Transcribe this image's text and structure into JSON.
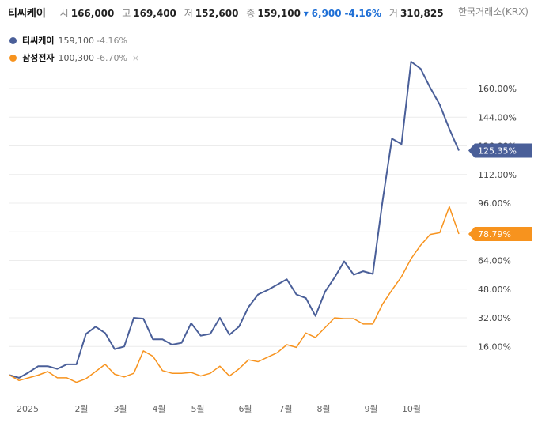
{
  "header": {
    "stock_name": "티씨케이",
    "open_label": "시",
    "open": "166,000",
    "high_label": "고",
    "high": "169,400",
    "low_label": "저",
    "low": "152,600",
    "close_label": "종",
    "close": "159,100",
    "change_arrow": "▾",
    "change": "6,900",
    "change_pct": "-4.16%",
    "volume_label": "거",
    "volume": "310,825",
    "source": "한국거래소(KRX)"
  },
  "legend": [
    {
      "name": "티씨케이",
      "value": "159,100",
      "pct": "-4.16%",
      "color": "#4a5f99"
    },
    {
      "name": "삼성전자",
      "value": "100,300",
      "pct": "-6.70%",
      "color": "#f7931e",
      "close_icon": "×"
    }
  ],
  "chart_data": {
    "type": "line",
    "x_ticks": [
      "2025",
      "2월",
      "3월",
      "4월",
      "5월",
      "6월",
      "7월",
      "8월",
      "9월",
      "10월"
    ],
    "y_ticks": [
      "16.00%",
      "32.00%",
      "48.00%",
      "64.00%",
      "80.00%",
      "96.00%",
      "112.00%",
      "128.00%",
      "144.00%",
      "160.00%"
    ],
    "ylim": [
      -16,
      176
    ],
    "grid": true,
    "series": [
      {
        "name": "티씨케이",
        "color": "#4a5f99",
        "last_label": "125.35%",
        "values": [
          0.0,
          -1.5,
          1.5,
          5.0,
          5.0,
          3.5,
          6.0,
          6.0,
          23.0,
          27.0,
          23.5,
          14.5,
          16.0,
          32.0,
          31.5,
          20.0,
          20.0,
          17.0,
          18.0,
          29.0,
          22.0,
          23.0,
          32.0,
          22.5,
          27.0,
          38.0,
          45.0,
          47.5,
          50.5,
          53.5,
          45.0,
          43.0,
          33.0,
          46.5,
          54.5,
          63.5,
          56.0,
          58.0,
          56.5,
          96.5,
          132.0,
          129.0,
          175.0,
          171.0,
          160.5,
          151.0,
          137.5,
          125.35
        ]
      },
      {
        "name": "삼성전자",
        "color": "#f7931e",
        "last_label": "78.79%",
        "values": [
          0.0,
          -3.0,
          -1.5,
          0.0,
          2.0,
          -1.5,
          -1.5,
          -4.0,
          -2.0,
          2.0,
          6.0,
          0.5,
          -1.0,
          1.0,
          13.5,
          10.5,
          2.5,
          1.0,
          1.0,
          1.5,
          -0.5,
          1.0,
          5.0,
          -0.5,
          3.5,
          8.5,
          7.5,
          10.0,
          12.5,
          17.0,
          15.5,
          23.5,
          21.0,
          26.5,
          32.0,
          31.5,
          31.5,
          28.5,
          28.5,
          39.5,
          47.5,
          55.0,
          65.0,
          72.5,
          78.5,
          79.5,
          94.0,
          78.79
        ]
      }
    ]
  }
}
